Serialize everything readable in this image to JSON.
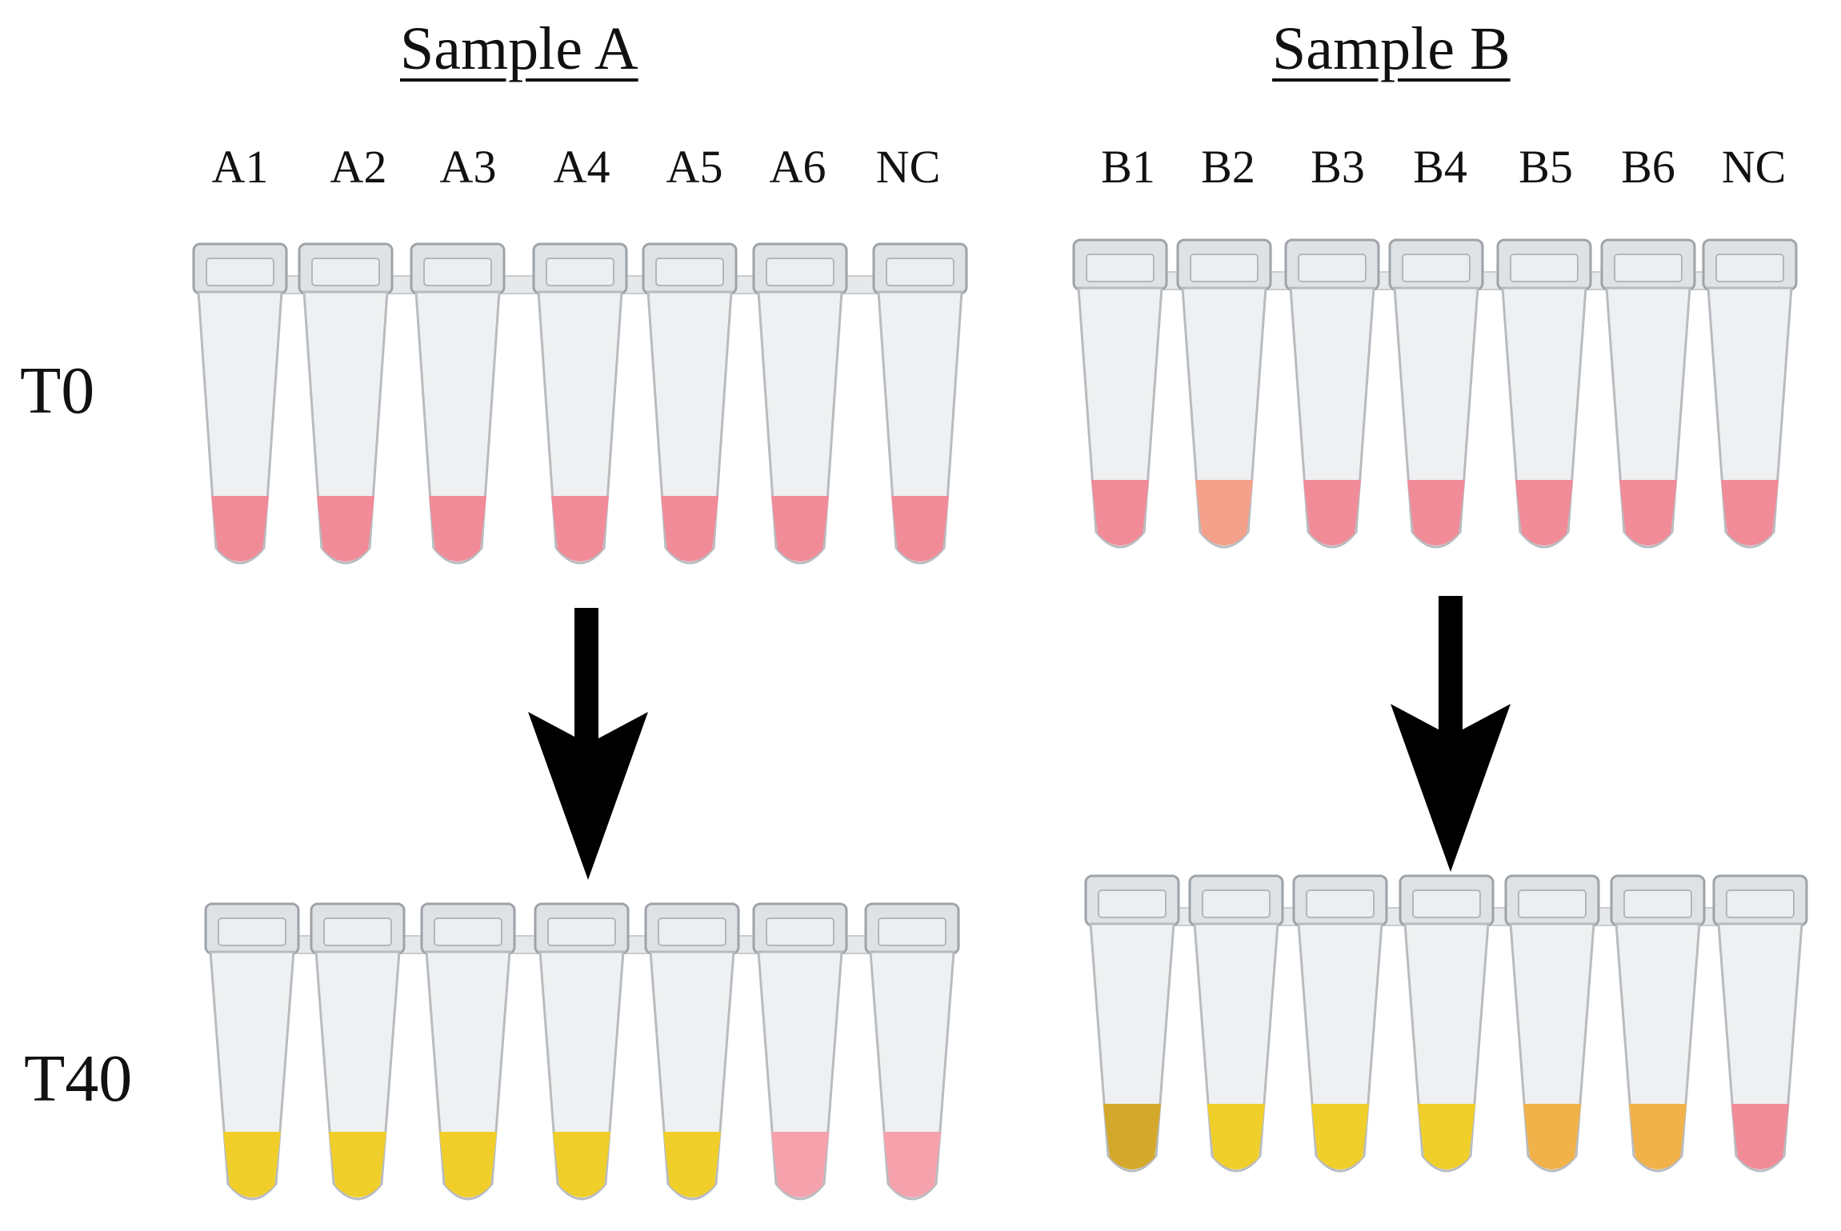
{
  "sample_a": {
    "title": "Sample A",
    "labels": [
      "A1",
      "A2",
      "A3",
      "A4",
      "A5",
      "A6",
      "NC"
    ]
  },
  "sample_b": {
    "title": "Sample B",
    "labels": [
      "B1",
      "B2",
      "B3",
      "B4",
      "B5",
      "B6",
      "NC"
    ]
  },
  "rows": {
    "t0": "T0",
    "t40": "T40"
  },
  "colors": {
    "pink": "#f28b98",
    "salmon": "#f4a08a",
    "light_pink": "#f6a2ad",
    "yellow": "#f1cf2a",
    "dark_yellow": "#d4a82a",
    "orange_yellow": "#f2b24a",
    "tube": "#eef0f1",
    "tube_edge": "#b8bcc0",
    "arrow": "#000000"
  },
  "tubes": {
    "a_t0": [
      "pink",
      "pink",
      "pink",
      "pink",
      "pink",
      "pink",
      "pink"
    ],
    "b_t0": [
      "pink",
      "salmon",
      "pink",
      "pink",
      "pink",
      "pink",
      "pink"
    ],
    "a_t40": [
      "yellow",
      "yellow",
      "yellow",
      "yellow",
      "yellow",
      "light_pink",
      "light_pink"
    ],
    "b_t40": [
      "dark_yellow",
      "yellow",
      "yellow",
      "yellow",
      "orange_yellow",
      "orange_yellow",
      "pink"
    ]
  }
}
